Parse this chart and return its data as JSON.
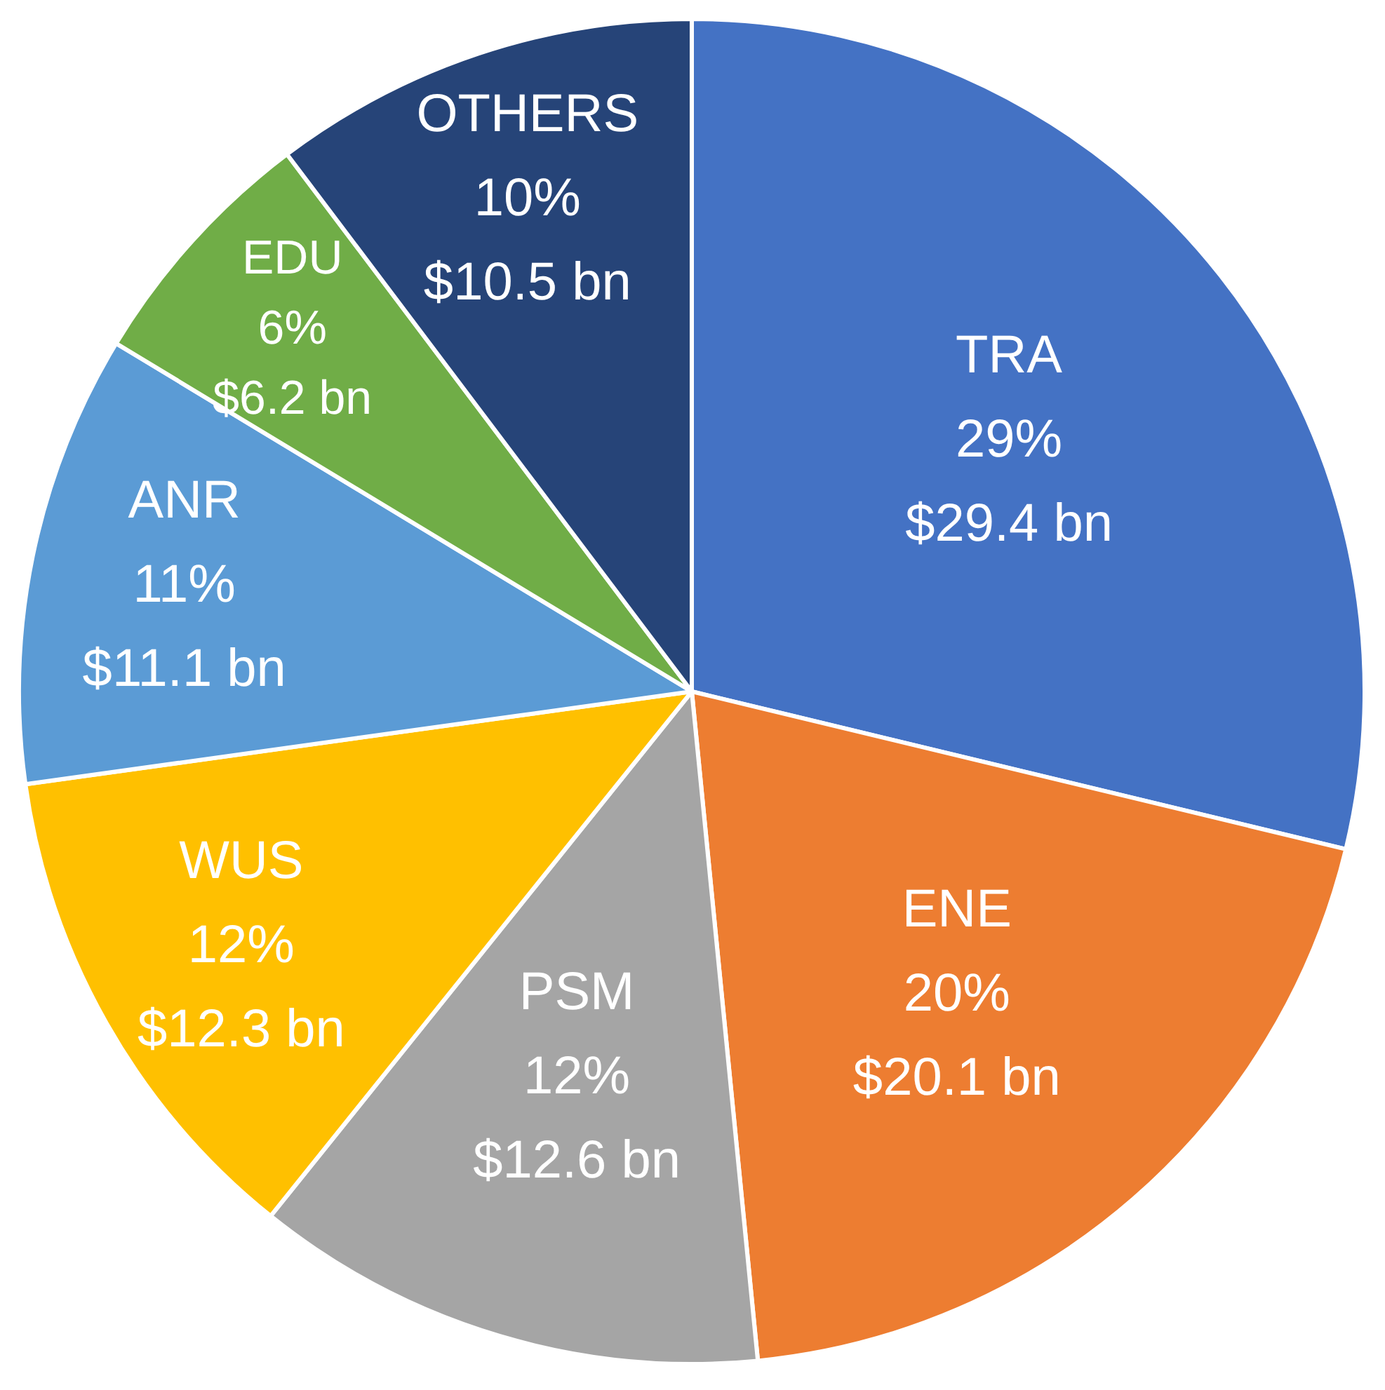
{
  "chart_data": {
    "type": "pie",
    "categories": [
      "TRA",
      "ENE",
      "PSM",
      "WUS",
      "ANR",
      "EDU",
      "OTHERS"
    ],
    "values": [
      29.4,
      20.1,
      12.6,
      12.3,
      11.1,
      6.2,
      10.5
    ],
    "value_labels": [
      "$29.4 bn",
      "$20.1 bn",
      "$12.6 bn",
      "$12.3 bn",
      "$11.1 bn",
      "$6.2 bn",
      "$10.5 bn"
    ],
    "annotations": [
      "29%",
      "20%",
      "12%",
      "12%",
      "11%",
      "6%",
      "10%"
    ],
    "colors": [
      "#4472c4",
      "#ed7d31",
      "#a5a5a5",
      "#ffc000",
      "#5b9bd5",
      "#70ad47",
      "#264478"
    ],
    "legend": false
  }
}
